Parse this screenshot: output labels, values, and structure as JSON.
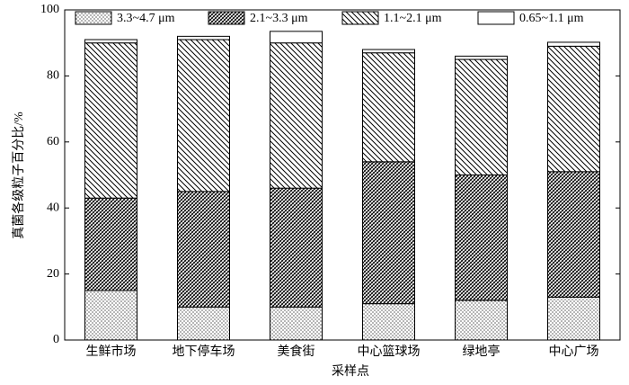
{
  "chart_data": {
    "type": "stacked-bar",
    "xlabel": "采样点",
    "ylabel": "真菌各级粒子百分比/%",
    "categories": [
      "生鲜市场",
      "地下停车场",
      "美食街",
      "中心篮球场",
      "绿地亭",
      "中心广场"
    ],
    "series": [
      {
        "name": "3.3~4.7 μm",
        "pattern": "dots",
        "values": [
          15,
          10,
          10,
          11,
          12,
          13
        ]
      },
      {
        "name": "2.1~3.3 μm",
        "pattern": "crosshatch",
        "values": [
          28,
          35,
          36,
          43,
          38,
          38
        ]
      },
      {
        "name": "1.1~2.1 μm",
        "pattern": "hatch",
        "values": [
          47,
          46,
          44,
          33,
          35,
          38
        ]
      },
      {
        "name": "0.65~1.1 μm",
        "pattern": "none",
        "values": [
          1,
          1,
          3.5,
          1,
          1,
          1.2
        ]
      }
    ],
    "ylim": [
      0,
      100
    ],
    "yticks": [
      0,
      20,
      40,
      60,
      80,
      100
    ]
  }
}
